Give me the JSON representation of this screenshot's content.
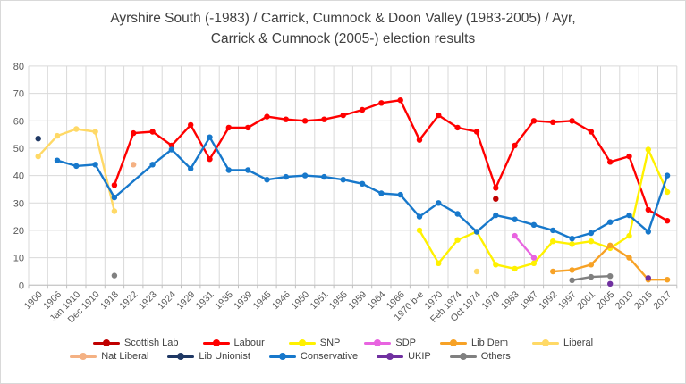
{
  "chart_data": {
    "type": "line",
    "title": "Ayrshire South (-1983) / Carrick, Cumnock & Doon Valley (1983-2005) / Ayr, Carrick & Cumnock (2005-) election results",
    "title_lines": [
      "Ayrshire South (-1983) / Carrick, Cumnock & Doon Valley (1983-2005) / Ayr,",
      "Carrick & Cumnock (2005-) election results"
    ],
    "xlabel": "",
    "ylabel": "",
    "ylim": [
      0,
      80
    ],
    "ytick_step": 10,
    "grid": true,
    "legend_position": "bottom",
    "units": "vote share %",
    "categories": [
      "1900",
      "1906",
      "Jan 1910",
      "Dec 1910",
      "1918",
      "1922",
      "1923",
      "1924",
      "1929",
      "1931",
      "1935",
      "1939",
      "1945",
      "1946",
      "1950",
      "1951",
      "1955",
      "1959",
      "1964",
      "1966",
      "1970 b-e",
      "1970",
      "Feb 1974",
      "Oct 1974",
      "1979",
      "1983",
      "1987",
      "1992",
      "1997",
      "2001",
      "2005",
      "2010",
      "2015",
      "2017"
    ],
    "series": [
      {
        "name": "Scottish Lab",
        "color": "#C00000",
        "values": [
          null,
          null,
          null,
          null,
          null,
          null,
          null,
          null,
          null,
          null,
          null,
          null,
          null,
          null,
          null,
          null,
          null,
          null,
          null,
          null,
          null,
          null,
          null,
          null,
          31.5,
          null,
          null,
          null,
          null,
          null,
          null,
          null,
          null,
          null
        ]
      },
      {
        "name": "Labour",
        "color": "#FF0000",
        "values": [
          null,
          null,
          null,
          null,
          36.5,
          55.5,
          56,
          51,
          58.5,
          46,
          57.5,
          57.5,
          61.5,
          60.5,
          60,
          60.5,
          62,
          64,
          66.5,
          67.5,
          53,
          62,
          57.5,
          56,
          35.5,
          51,
          60,
          59.5,
          60,
          56,
          45,
          47,
          27.5,
          23.5
        ]
      },
      {
        "name": "SNP",
        "color": "#FFF100",
        "values": [
          null,
          null,
          null,
          null,
          null,
          null,
          null,
          null,
          null,
          null,
          null,
          null,
          null,
          null,
          null,
          null,
          null,
          null,
          null,
          null,
          20,
          8,
          16.5,
          19.5,
          7.5,
          6,
          8,
          16,
          15,
          16,
          13.5,
          18,
          49.5,
          34
        ]
      },
      {
        "name": "SDP",
        "color": "#E864E0",
        "values": [
          null,
          null,
          null,
          null,
          null,
          null,
          null,
          null,
          null,
          null,
          null,
          null,
          null,
          null,
          null,
          null,
          null,
          null,
          null,
          null,
          null,
          null,
          null,
          null,
          null,
          18,
          10,
          null,
          null,
          null,
          null,
          null,
          null,
          null
        ]
      },
      {
        "name": "Lib Dem",
        "color": "#F7A226",
        "values": [
          null,
          null,
          null,
          null,
          null,
          null,
          null,
          null,
          null,
          null,
          null,
          null,
          null,
          null,
          null,
          null,
          null,
          null,
          null,
          null,
          null,
          null,
          null,
          null,
          null,
          null,
          null,
          5,
          5.5,
          7.5,
          14.5,
          10,
          2,
          2
        ]
      },
      {
        "name": "Liberal",
        "color": "#FFD966",
        "values": [
          47,
          54.5,
          57,
          56,
          27,
          null,
          null,
          null,
          null,
          null,
          null,
          null,
          null,
          null,
          null,
          null,
          null,
          null,
          null,
          null,
          null,
          null,
          null,
          5,
          null,
          null,
          null,
          null,
          null,
          null,
          null,
          null,
          null,
          null
        ]
      },
      {
        "name": "Nat Liberal",
        "color": "#F4B183",
        "values": [
          null,
          null,
          null,
          null,
          null,
          44,
          null,
          null,
          null,
          null,
          null,
          null,
          null,
          null,
          null,
          null,
          null,
          null,
          null,
          null,
          null,
          null,
          null,
          null,
          null,
          null,
          null,
          null,
          null,
          null,
          null,
          null,
          null,
          null
        ]
      },
      {
        "name": "Lib Unionist",
        "color": "#1F3864",
        "values": [
          53.5,
          null,
          null,
          null,
          null,
          null,
          null,
          null,
          null,
          null,
          null,
          null,
          null,
          null,
          null,
          null,
          null,
          null,
          null,
          null,
          null,
          null,
          null,
          null,
          null,
          null,
          null,
          null,
          null,
          null,
          null,
          null,
          null,
          null
        ]
      },
      {
        "name": "Conservative",
        "color": "#1778CB",
        "bridge_gaps": true,
        "values": [
          null,
          45.5,
          43.5,
          44,
          32,
          null,
          44,
          49.5,
          42.5,
          54,
          42,
          42,
          38.5,
          39.5,
          40,
          39.5,
          38.5,
          37,
          33.5,
          33,
          25,
          30,
          26,
          19.5,
          25.5,
          24,
          22,
          20,
          17,
          19,
          23,
          25.5,
          19.5,
          40
        ]
      },
      {
        "name": "UKIP",
        "color": "#7030A0",
        "values": [
          null,
          null,
          null,
          null,
          null,
          null,
          null,
          null,
          null,
          null,
          null,
          null,
          null,
          null,
          null,
          null,
          null,
          null,
          null,
          null,
          null,
          null,
          null,
          null,
          null,
          null,
          null,
          null,
          null,
          null,
          0.5,
          null,
          2.6,
          null
        ]
      },
      {
        "name": "Others",
        "color": "#808080",
        "values": [
          null,
          null,
          null,
          null,
          3.5,
          null,
          null,
          null,
          null,
          null,
          null,
          null,
          null,
          null,
          null,
          null,
          null,
          null,
          null,
          null,
          null,
          null,
          null,
          null,
          null,
          null,
          null,
          null,
          1.8,
          3,
          3.3,
          null,
          null,
          null
        ]
      }
    ]
  },
  "colors": {
    "grid": "#D9D9D9",
    "axis": "#BFBFBF",
    "tick_label": "#595959",
    "title_text": "#404040",
    "legend_text": "#404040",
    "background": "#FFFFFF"
  }
}
